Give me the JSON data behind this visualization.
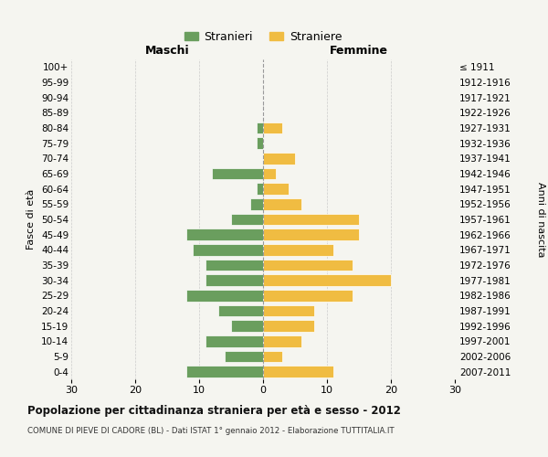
{
  "age_groups_bottom_to_top": [
    "0-4",
    "5-9",
    "10-14",
    "15-19",
    "20-24",
    "25-29",
    "30-34",
    "35-39",
    "40-44",
    "45-49",
    "50-54",
    "55-59",
    "60-64",
    "65-69",
    "70-74",
    "75-79",
    "80-84",
    "85-89",
    "90-94",
    "95-99",
    "100+"
  ],
  "birth_years_bottom_to_top": [
    "2007-2011",
    "2002-2006",
    "1997-2001",
    "1992-1996",
    "1987-1991",
    "1982-1986",
    "1977-1981",
    "1972-1976",
    "1967-1971",
    "1962-1966",
    "1957-1961",
    "1952-1956",
    "1947-1951",
    "1942-1946",
    "1937-1941",
    "1932-1936",
    "1927-1931",
    "1922-1926",
    "1917-1921",
    "1912-1916",
    "≤ 1911"
  ],
  "males_bottom_to_top": [
    12,
    6,
    9,
    5,
    7,
    12,
    9,
    9,
    11,
    12,
    5,
    2,
    1,
    8,
    0,
    1,
    1,
    0,
    0,
    0,
    0
  ],
  "females_bottom_to_top": [
    11,
    3,
    6,
    8,
    8,
    14,
    20,
    14,
    11,
    15,
    15,
    6,
    4,
    2,
    5,
    0,
    3,
    0,
    0,
    0,
    0
  ],
  "male_color": "#6a9e5e",
  "female_color": "#f0bc42",
  "background_color": "#f5f5f0",
  "bar_edge_color": "white",
  "title": "Popolazione per cittadinanza straniera per età e sesso - 2012",
  "subtitle": "COMUNE DI PIEVE DI CADORE (BL) - Dati ISTAT 1° gennaio 2012 - Elaborazione TUTTITALIA.IT",
  "xlabel_left": "Maschi",
  "xlabel_right": "Femmine",
  "ylabel_left": "Fasce di età",
  "ylabel_right": "Anni di nascita",
  "legend_male": "Stranieri",
  "legend_female": "Straniere",
  "xlim": 30,
  "grid_color": "#cccccc",
  "vline_color": "#999999"
}
